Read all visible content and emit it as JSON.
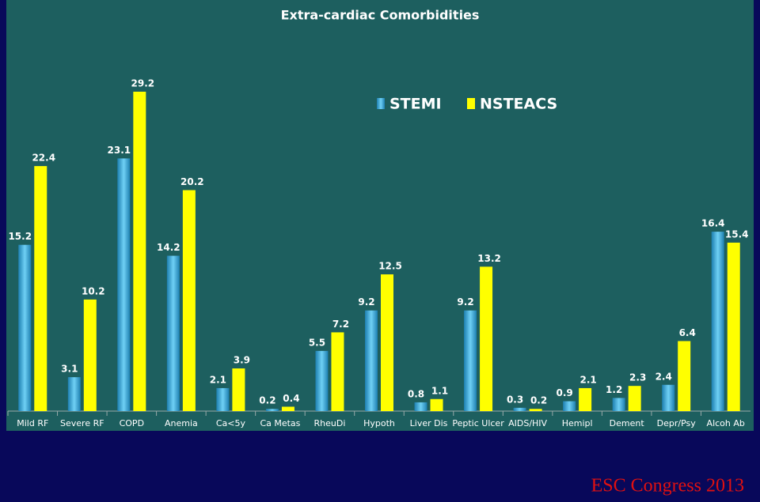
{
  "chart_data": {
    "type": "bar",
    "title": "Extra-cardiac Comorbidities",
    "categories": [
      "Mild RF",
      "Severe RF",
      "COPD",
      "Anemia",
      "Ca<5y",
      "Ca Metas",
      "RheuDi",
      "Hypoth",
      "Liver Dis",
      "Peptic Ulcer",
      "AIDS/HIV",
      "Hemipl",
      "Dement",
      "Depr/Psy",
      "Alcoh Ab"
    ],
    "series": [
      {
        "name": "STEMI",
        "color": "#3aaee0",
        "values": [
          15.2,
          3.1,
          23.1,
          14.2,
          2.1,
          0.2,
          5.5,
          9.2,
          0.8,
          9.2,
          0.3,
          0.9,
          1.2,
          2.4,
          16.4
        ]
      },
      {
        "name": "NSTEACS",
        "color": "#ffff00",
        "values": [
          22.4,
          10.2,
          29.2,
          20.2,
          3.9,
          0.4,
          7.2,
          12.5,
          1.1,
          13.2,
          0.2,
          2.1,
          2.3,
          6.4,
          15.4
        ]
      }
    ]
  },
  "footer": {
    "text": "ESC Congress 2013"
  }
}
